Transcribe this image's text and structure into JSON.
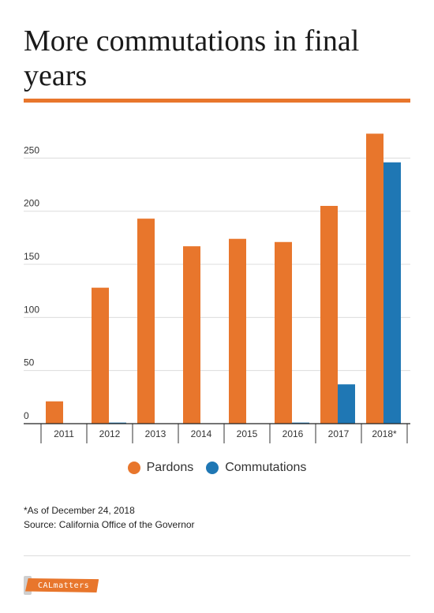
{
  "title": "More commutations in final years",
  "chart_data": {
    "type": "bar",
    "categories": [
      "2011",
      "2012",
      "2013",
      "2014",
      "2015",
      "2016",
      "2017",
      "2018*"
    ],
    "series": [
      {
        "name": "Pardons",
        "color": "#e8762c",
        "values": [
          21,
          128,
          193,
          167,
          174,
          171,
          205,
          273
        ]
      },
      {
        "name": "Commutations",
        "color": "#1f77b4",
        "values": [
          0,
          1,
          0,
          0,
          0,
          1,
          37,
          246
        ]
      }
    ],
    "y_ticks": [
      0,
      50,
      100,
      150,
      200,
      250
    ],
    "ylim": [
      0,
      280
    ],
    "grid": true,
    "legend": "bottom"
  },
  "legend": {
    "pardons_label": "Pardons",
    "commutations_label": "Commutations"
  },
  "footnotes": {
    "note": "*As of December 24, 2018",
    "source": "Source: California Office of the Governor"
  },
  "logo": {
    "text": "CALmatters"
  }
}
